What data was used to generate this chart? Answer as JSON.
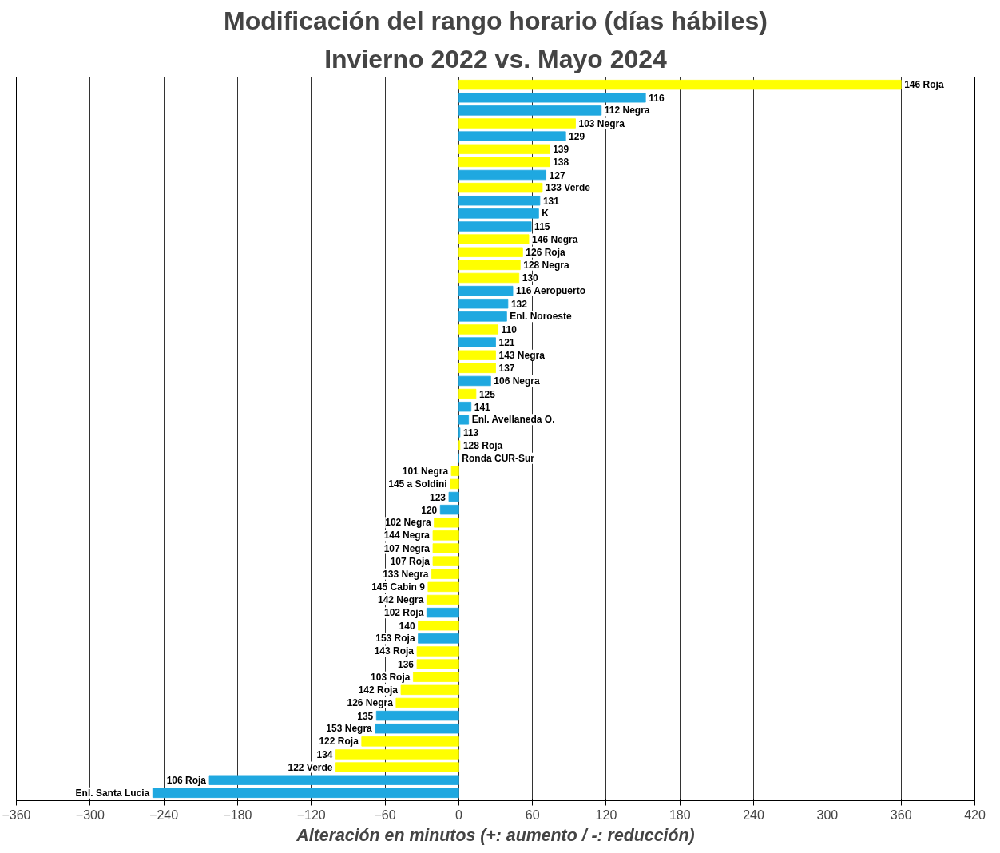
{
  "chart_data": {
    "type": "bar",
    "orientation": "horizontal",
    "title": "Modificación del rango horario (días hábiles)",
    "subtitle": "Invierno 2022 vs. Mayo 2024",
    "xlabel": "Alteración en minutos (+: aumento / -: reducción)",
    "categories": [
      "146 Roja",
      "116",
      "112 Negra",
      "103 Negra",
      "129",
      "139",
      "138",
      "127",
      "133 Verde",
      "131",
      "K",
      "115",
      "146 Negra",
      "126 Roja",
      "128 Negra",
      "130",
      "116 Aeropuerto",
      "132",
      "Enl. Noroeste",
      "110",
      "121",
      "143 Negra",
      "137",
      "106 Negra",
      "125",
      "141",
      "Enl. Avellaneda O.",
      "113",
      "128 Roja",
      "Ronda CUR-Sur",
      "101 Negra",
      "145 a Soldini",
      "123",
      "120",
      "102 Negra",
      "144 Negra",
      "107 Negra",
      "107 Roja",
      "133 Negra",
      "145 Cabin 9",
      "142 Negra",
      "102 Roja",
      "140",
      "153 Roja",
      "143 Roja",
      "136",
      "103 Roja",
      "142 Roja",
      "126 Negra",
      "135",
      "153 Negra",
      "122 Roja",
      "134",
      "122 Verde",
      "106 Roja",
      "Enl. Santa Lucia"
    ],
    "values": [
      360,
      152,
      116,
      95,
      87,
      74,
      74,
      71,
      68,
      66,
      65,
      59,
      57,
      52,
      50,
      49,
      44,
      40,
      39,
      32,
      30,
      30,
      30,
      26,
      14,
      10,
      8,
      1,
      1,
      0,
      -6,
      -7,
      -8,
      -15,
      -20,
      -21,
      -21,
      -21,
      -22,
      -25,
      -26,
      -26,
      -33,
      -33,
      -34,
      -34,
      -37,
      -47,
      -51,
      -67,
      -68,
      -79,
      -100,
      -100,
      -203,
      -249
    ],
    "colors": [
      "#ffff00",
      "#1fa8e0",
      "#1fa8e0",
      "#ffff00",
      "#1fa8e0",
      "#ffff00",
      "#ffff00",
      "#1fa8e0",
      "#ffff00",
      "#1fa8e0",
      "#1fa8e0",
      "#1fa8e0",
      "#ffff00",
      "#ffff00",
      "#ffff00",
      "#ffff00",
      "#1fa8e0",
      "#1fa8e0",
      "#1fa8e0",
      "#ffff00",
      "#1fa8e0",
      "#ffff00",
      "#ffff00",
      "#1fa8e0",
      "#ffff00",
      "#1fa8e0",
      "#1fa8e0",
      "#1fa8e0",
      "#ffff00",
      "#1fa8e0",
      "#ffff00",
      "#ffff00",
      "#1fa8e0",
      "#1fa8e0",
      "#ffff00",
      "#ffff00",
      "#ffff00",
      "#ffff00",
      "#ffff00",
      "#ffff00",
      "#ffff00",
      "#1fa8e0",
      "#ffff00",
      "#1fa8e0",
      "#ffff00",
      "#ffff00",
      "#ffff00",
      "#ffff00",
      "#ffff00",
      "#1fa8e0",
      "#1fa8e0",
      "#ffff00",
      "#ffff00",
      "#ffff00",
      "#1fa8e0",
      "#1fa8e0"
    ],
    "xlim": [
      -360,
      420
    ],
    "xticks": [
      -360,
      -300,
      -240,
      -180,
      -120,
      -60,
      0,
      60,
      120,
      180,
      240,
      300,
      360,
      420
    ],
    "grid": "x",
    "tick_labels": "x"
  }
}
